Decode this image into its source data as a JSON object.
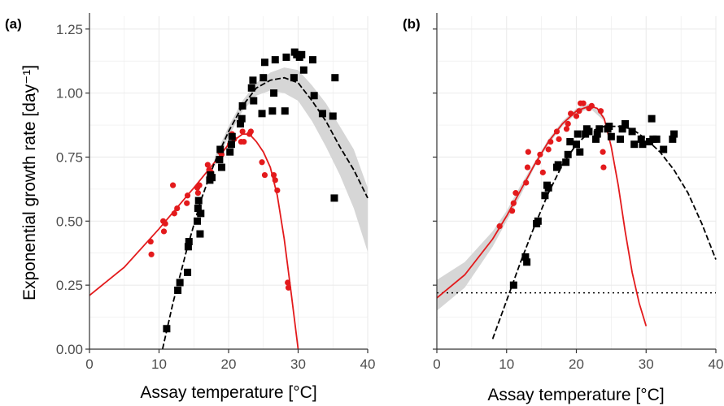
{
  "colors": {
    "red_series": "#e31a1c",
    "black_series": "#000000",
    "ci_band": "#d6d6d6",
    "grid": "#ebebeb",
    "tick_text": "#4d4d4d"
  },
  "chart_data": [
    {
      "type": "scatter",
      "panel_label": "(a)",
      "xlabel": "Assay temperature [°C]",
      "ylabel": "Exponential  growth  rate [day⁻¹]",
      "xlim": [
        0,
        40
      ],
      "ylim": [
        0,
        1.3
      ],
      "x_ticks": [
        0,
        10,
        20,
        30,
        40
      ],
      "y_ticks": [
        0.0,
        0.25,
        0.5,
        0.75,
        1.0,
        1.25
      ],
      "x_tick_labels": [
        "0",
        "10",
        "20",
        "30",
        "40"
      ],
      "y_tick_labels": [
        "0.00",
        "0.25",
        "0.50",
        "0.75",
        "1.00",
        "1.25"
      ],
      "grid": true,
      "series": [
        {
          "color": "red",
          "marker": "circle",
          "fit_line": "solid",
          "points": [
            [
              8.8,
              0.42
            ],
            [
              8.9,
              0.37
            ],
            [
              10.6,
              0.5
            ],
            [
              10.7,
              0.46
            ],
            [
              10.9,
              0.49
            ],
            [
              12.0,
              0.64
            ],
            [
              12.2,
              0.53
            ],
            [
              12.6,
              0.55
            ],
            [
              14.0,
              0.57
            ],
            [
              14.1,
              0.6
            ],
            [
              15.5,
              0.63
            ],
            [
              15.6,
              0.61
            ],
            [
              15.8,
              0.64
            ],
            [
              17.0,
              0.72
            ],
            [
              17.2,
              0.7
            ],
            [
              17.5,
              0.69
            ],
            [
              18.8,
              0.77
            ],
            [
              19.0,
              0.76
            ],
            [
              20.2,
              0.8
            ],
            [
              20.5,
              0.84
            ],
            [
              20.8,
              0.82
            ],
            [
              21.8,
              0.81
            ],
            [
              22.0,
              0.85
            ],
            [
              22.2,
              0.81
            ],
            [
              23.0,
              0.84
            ],
            [
              23.2,
              0.85
            ],
            [
              24.8,
              0.73
            ],
            [
              25.2,
              0.68
            ],
            [
              26.5,
              0.68
            ],
            [
              26.7,
              0.66
            ],
            [
              27.0,
              0.62
            ],
            [
              28.5,
              0.26
            ],
            [
              28.6,
              0.24
            ]
          ],
          "fit": [
            [
              0,
              0.21
            ],
            [
              5,
              0.32
            ],
            [
              10,
              0.47
            ],
            [
              15,
              0.63
            ],
            [
              18,
              0.73
            ],
            [
              20,
              0.8
            ],
            [
              22,
              0.84
            ],
            [
              23,
              0.84
            ],
            [
              24,
              0.81
            ],
            [
              25,
              0.77
            ],
            [
              26,
              0.71
            ],
            [
              27,
              0.6
            ],
            [
              28,
              0.43
            ],
            [
              29,
              0.22
            ],
            [
              30,
              0.0
            ]
          ]
        },
        {
          "color": "black",
          "marker": "square",
          "fit_line": "dashed",
          "confidence_band": true,
          "points": [
            [
              11.1,
              0.08
            ],
            [
              12.7,
              0.23
            ],
            [
              13.0,
              0.26
            ],
            [
              14.1,
              0.3
            ],
            [
              14.2,
              0.4
            ],
            [
              14.3,
              0.42
            ],
            [
              15.5,
              0.5
            ],
            [
              15.6,
              0.55
            ],
            [
              15.7,
              0.58
            ],
            [
              15.9,
              0.45
            ],
            [
              16.0,
              0.53
            ],
            [
              17.3,
              0.66
            ],
            [
              17.4,
              0.68
            ],
            [
              17.6,
              0.67
            ],
            [
              18.7,
              0.74
            ],
            [
              18.8,
              0.78
            ],
            [
              19.0,
              0.71
            ],
            [
              20.2,
              0.77
            ],
            [
              20.4,
              0.8
            ],
            [
              20.5,
              0.83
            ],
            [
              21.7,
              0.88
            ],
            [
              21.9,
              0.9
            ],
            [
              22.0,
              0.95
            ],
            [
              23.3,
              1.02
            ],
            [
              23.5,
              1.05
            ],
            [
              23.6,
              0.97
            ],
            [
              24.8,
              0.92
            ],
            [
              25.0,
              1.06
            ],
            [
              25.2,
              1.12
            ],
            [
              26.3,
              0.93
            ],
            [
              26.5,
              1.0
            ],
            [
              26.7,
              1.13
            ],
            [
              28.1,
              0.93
            ],
            [
              28.3,
              1.14
            ],
            [
              29.4,
              1.06
            ],
            [
              29.5,
              1.16
            ],
            [
              29.8,
              1.15
            ],
            [
              30.2,
              1.14
            ],
            [
              30.5,
              1.15
            ],
            [
              30.8,
              1.09
            ],
            [
              32.1,
              1.13
            ],
            [
              32.3,
              0.99
            ],
            [
              33.5,
              0.92
            ],
            [
              35.0,
              0.91
            ],
            [
              35.2,
              0.59
            ],
            [
              35.3,
              1.06
            ]
          ],
          "fit": [
            [
              10.5,
              0.0
            ],
            [
              12,
              0.18
            ],
            [
              14,
              0.39
            ],
            [
              16,
              0.58
            ],
            [
              18,
              0.73
            ],
            [
              20,
              0.85
            ],
            [
              22,
              0.95
            ],
            [
              24,
              1.02
            ],
            [
              26,
              1.05
            ],
            [
              28,
              1.06
            ],
            [
              30,
              1.04
            ],
            [
              32,
              0.97
            ],
            [
              34,
              0.89
            ],
            [
              36,
              0.79
            ],
            [
              38,
              0.7
            ],
            [
              40,
              0.59
            ]
          ],
          "band_upper": [
            [
              18,
              0.75
            ],
            [
              20,
              0.87
            ],
            [
              22,
              0.97
            ],
            [
              24,
              1.04
            ],
            [
              26,
              1.08
            ],
            [
              28,
              1.1
            ],
            [
              30,
              1.09
            ],
            [
              32,
              1.03
            ],
            [
              34,
              0.96
            ],
            [
              36,
              0.87
            ],
            [
              38,
              0.78
            ],
            [
              40,
              0.63
            ]
          ],
          "band_lower": [
            [
              18,
              0.71
            ],
            [
              20,
              0.83
            ],
            [
              22,
              0.93
            ],
            [
              24,
              0.99
            ],
            [
              26,
              1.01
            ],
            [
              28,
              1.0
            ],
            [
              30,
              0.97
            ],
            [
              32,
              0.89
            ],
            [
              34,
              0.79
            ],
            [
              36,
              0.68
            ],
            [
              38,
              0.55
            ],
            [
              40,
              0.38
            ]
          ]
        }
      ]
    },
    {
      "type": "scatter",
      "panel_label": "(b)",
      "xlabel": "Assay temperature [°C]",
      "xlim": [
        0,
        40
      ],
      "ylim": [
        0,
        1.3
      ],
      "x_ticks": [
        0,
        10,
        20,
        30,
        40
      ],
      "y_ticks": [
        0.0,
        0.25,
        0.5,
        0.75,
        1.0,
        1.25
      ],
      "x_tick_labels": [
        "0",
        "10",
        "20",
        "30",
        "40"
      ],
      "grid": true,
      "reference_line": {
        "y": 0.22,
        "style": "dotted"
      },
      "series": [
        {
          "color": "red",
          "marker": "circle",
          "fit_line": "solid",
          "confidence_band": true,
          "points": [
            [
              9.0,
              0.48
            ],
            [
              10.8,
              0.54
            ],
            [
              11.0,
              0.57
            ],
            [
              11.3,
              0.61
            ],
            [
              12.8,
              0.65
            ],
            [
              13.0,
              0.71
            ],
            [
              13.1,
              0.77
            ],
            [
              14.5,
              0.73
            ],
            [
              14.8,
              0.76
            ],
            [
              15.2,
              0.69
            ],
            [
              16.0,
              0.78
            ],
            [
              16.3,
              0.81
            ],
            [
              17.2,
              0.85
            ],
            [
              17.5,
              0.82
            ],
            [
              18.6,
              0.86
            ],
            [
              18.8,
              0.88
            ],
            [
              19.2,
              0.92
            ],
            [
              20.0,
              0.91
            ],
            [
              20.4,
              0.93
            ],
            [
              20.6,
              0.96
            ],
            [
              21.0,
              0.96
            ],
            [
              21.8,
              0.94
            ],
            [
              22.2,
              0.95
            ],
            [
              23.5,
              0.93
            ],
            [
              23.8,
              0.77
            ],
            [
              23.9,
              0.71
            ]
          ],
          "fit": [
            [
              0,
              0.2
            ],
            [
              4,
              0.29
            ],
            [
              8,
              0.43
            ],
            [
              10,
              0.52
            ],
            [
              12,
              0.62
            ],
            [
              14,
              0.72
            ],
            [
              16,
              0.81
            ],
            [
              18,
              0.88
            ],
            [
              20,
              0.93
            ],
            [
              21,
              0.94
            ],
            [
              22,
              0.95
            ],
            [
              23,
              0.94
            ],
            [
              24,
              0.9
            ],
            [
              25,
              0.79
            ],
            [
              26,
              0.64
            ],
            [
              27,
              0.46
            ],
            [
              28,
              0.3
            ],
            [
              29,
              0.18
            ],
            [
              30,
              0.09
            ]
          ],
          "band_upper": [
            [
              0,
              0.27
            ],
            [
              4,
              0.34
            ],
            [
              8,
              0.46
            ],
            [
              10,
              0.54
            ],
            [
              12,
              0.64
            ],
            [
              14,
              0.73
            ],
            [
              16,
              0.82
            ],
            [
              18,
              0.89
            ],
            [
              20,
              0.94
            ],
            [
              22,
              0.96
            ],
            [
              24,
              0.91
            ]
          ],
          "band_lower": [
            [
              0,
              0.15
            ],
            [
              4,
              0.24
            ],
            [
              8,
              0.4
            ],
            [
              10,
              0.5
            ],
            [
              12,
              0.6
            ],
            [
              14,
              0.71
            ],
            [
              16,
              0.8
            ],
            [
              18,
              0.87
            ],
            [
              20,
              0.92
            ],
            [
              22,
              0.94
            ],
            [
              24,
              0.89
            ]
          ]
        },
        {
          "color": "black",
          "marker": "square",
          "fit_line": "dashed",
          "points": [
            [
              11.0,
              0.25
            ],
            [
              12.7,
              0.36
            ],
            [
              12.9,
              0.34
            ],
            [
              14.3,
              0.49
            ],
            [
              14.5,
              0.5
            ],
            [
              15.5,
              0.6
            ],
            [
              15.8,
              0.64
            ],
            [
              16.0,
              0.63
            ],
            [
              17.2,
              0.71
            ],
            [
              17.4,
              0.72
            ],
            [
              18.5,
              0.73
            ],
            [
              18.8,
              0.76
            ],
            [
              19.1,
              0.81
            ],
            [
              20.0,
              0.8
            ],
            [
              20.2,
              0.84
            ],
            [
              20.5,
              0.77
            ],
            [
              21.3,
              0.84
            ],
            [
              21.5,
              0.86
            ],
            [
              21.8,
              0.85
            ],
            [
              22.8,
              0.82
            ],
            [
              23.0,
              0.84
            ],
            [
              23.3,
              0.86
            ],
            [
              24.5,
              0.86
            ],
            [
              24.7,
              0.87
            ],
            [
              25.0,
              0.83
            ],
            [
              26.3,
              0.82
            ],
            [
              26.6,
              0.86
            ],
            [
              27.0,
              0.88
            ],
            [
              28.0,
              0.85
            ],
            [
              28.3,
              0.8
            ],
            [
              29.3,
              0.82
            ],
            [
              29.5,
              0.8
            ],
            [
              30.5,
              0.81
            ],
            [
              30.8,
              0.9
            ],
            [
              31.0,
              0.82
            ],
            [
              31.5,
              0.82
            ],
            [
              32.5,
              0.78
            ],
            [
              33.8,
              0.82
            ],
            [
              34.0,
              0.84
            ]
          ],
          "fit": [
            [
              8,
              0.04
            ],
            [
              10,
              0.19
            ],
            [
              12,
              0.34
            ],
            [
              14,
              0.48
            ],
            [
              16,
              0.61
            ],
            [
              18,
              0.72
            ],
            [
              20,
              0.8
            ],
            [
              22,
              0.85
            ],
            [
              24,
              0.87
            ],
            [
              26,
              0.87
            ],
            [
              28,
              0.86
            ],
            [
              30,
              0.82
            ],
            [
              32,
              0.77
            ],
            [
              34,
              0.7
            ],
            [
              36,
              0.61
            ],
            [
              38,
              0.49
            ],
            [
              40,
              0.35
            ]
          ]
        }
      ]
    }
  ]
}
